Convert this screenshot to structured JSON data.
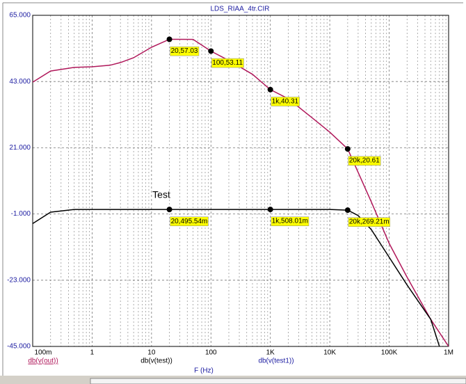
{
  "chart_data": {
    "type": "line",
    "title": "LDS_RIAA_4tr.CIR",
    "x_label": "F (Hz)",
    "annotation": "Test",
    "extra_legend_label": "db(v(test1))",
    "log_x": true,
    "grid": true,
    "xlim": [
      0.1,
      1000000
    ],
    "ylim": [
      -45,
      65
    ],
    "xticks": [
      {
        "value": 0.1,
        "label": "100m"
      },
      1,
      10,
      100,
      {
        "value": 1000,
        "label": "1K"
      },
      {
        "value": 10000,
        "label": "10K"
      },
      {
        "value": 100000,
        "label": "100K"
      },
      {
        "value": 1000000,
        "label": "1M"
      }
    ],
    "yticks": [
      {
        "value": 65,
        "label": "65.000"
      },
      {
        "value": 43,
        "label": "43.000"
      },
      {
        "value": 21,
        "label": "21.000"
      },
      {
        "value": -1,
        "label": "-1.000"
      },
      {
        "value": -23,
        "label": "-23.000"
      },
      {
        "value": -45,
        "label": "-45.000"
      }
    ],
    "series": [
      {
        "name": "db(v(out))",
        "color": "#b0175a",
        "x": [
          0.1,
          0.2,
          0.5,
          1,
          2,
          3,
          5,
          10,
          20,
          50,
          100,
          200,
          500,
          1000,
          2000,
          5000,
          10000,
          20000,
          50000,
          100000,
          200000,
          500000,
          1000000
        ],
        "values": [
          42.8,
          46.5,
          47.7,
          47.9,
          48.4,
          49.3,
          50.9,
          54.4,
          57.03,
          57,
          53.11,
          50,
          45.4,
          40.31,
          37.3,
          31,
          26.2,
          20.61,
          3,
          -10.8,
          -22,
          -36,
          -45
        ],
        "value_labels": [
          null,
          null,
          null,
          null,
          null,
          null,
          null,
          null,
          "20,57.03",
          null,
          "100,53.11",
          null,
          null,
          "1k,40.31",
          null,
          null,
          null,
          "20k,20.61",
          null,
          null,
          null,
          null,
          null
        ]
      },
      {
        "name": "db(v(test))",
        "color": "#000000",
        "x": [
          0.1,
          0.2,
          0.5,
          1,
          20,
          1000,
          10000,
          20000,
          30000,
          50000,
          100000,
          200000,
          500000,
          700000
        ],
        "values": [
          -4.2,
          -0.4,
          0.5,
          0.5,
          0.49554,
          0.50801,
          0.5,
          0.26921,
          -1.5,
          -6.2,
          -15.4,
          -24.6,
          -36,
          -45
        ],
        "value_labels": [
          null,
          null,
          null,
          null,
          "20,495.54m",
          "1k,508.01m",
          null,
          "20k,269.21m",
          null,
          null,
          null,
          null,
          null,
          null
        ]
      }
    ]
  }
}
